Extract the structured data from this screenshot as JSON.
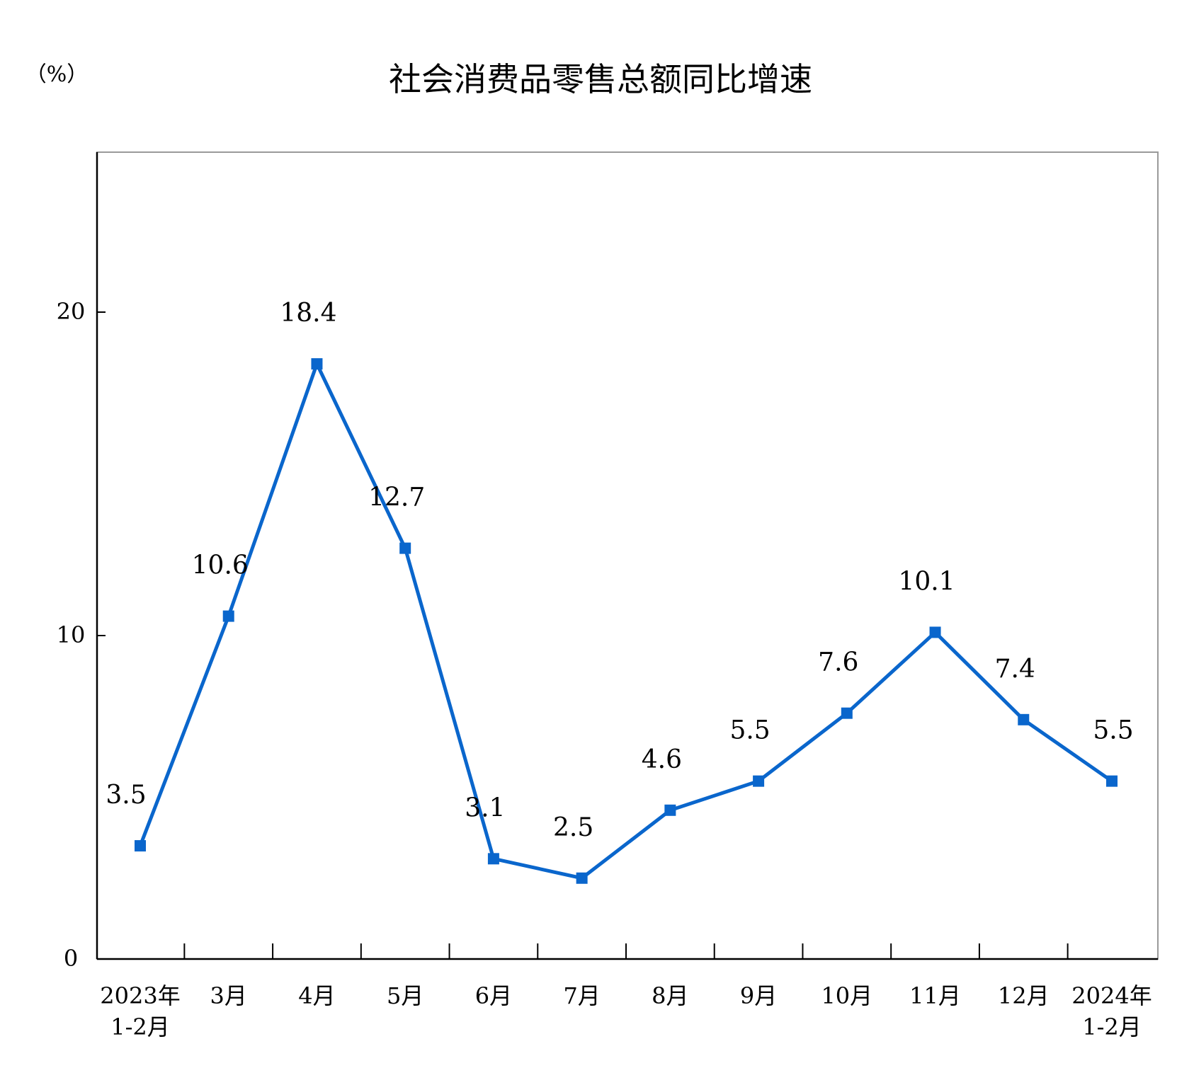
{
  "chart_data": {
    "type": "line",
    "title": "社会消费品零售总额同比增速",
    "ylabel": "（%）",
    "xlabel": "",
    "ylim": [
      0,
      20
    ],
    "yticks": [
      "0",
      "10",
      "20"
    ],
    "grid": false,
    "categories": [
      [
        "2023年",
        "1-2月"
      ],
      [
        "3月"
      ],
      [
        "4月"
      ],
      [
        "5月"
      ],
      [
        "6月"
      ],
      [
        "7月"
      ],
      [
        "8月"
      ],
      [
        "9月"
      ],
      [
        "10月"
      ],
      [
        "11月"
      ],
      [
        "12月"
      ],
      [
        "2024年",
        "1-2月"
      ]
    ],
    "series": [
      {
        "values": [
          3.5,
          10.6,
          18.4,
          12.7,
          3.1,
          2.5,
          4.6,
          5.5,
          7.6,
          10.1,
          7.4,
          5.5
        ],
        "labels": [
          "3.5",
          "10.6",
          "18.4",
          "12.7",
          "3.1",
          "2.5",
          "4.6",
          "5.5",
          "7.6",
          "10.1",
          "7.4",
          "5.5"
        ],
        "color": "#0a66cc"
      }
    ]
  }
}
